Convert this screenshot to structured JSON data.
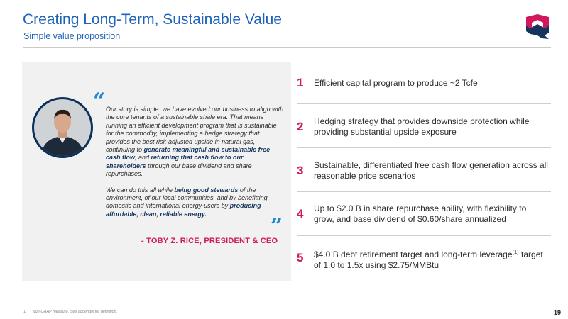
{
  "header": {
    "title": "Creating Long-Term, Sustainable Value",
    "subtitle": "Simple value proposition"
  },
  "logo": {
    "icon": "company-logo",
    "colors": [
      "#d0185a",
      "#16355e"
    ]
  },
  "quote": {
    "p1": [
      {
        "t": "Our story is simple: we have evolved our business to align with the core tenants of a sustainable shale era. That means running an efficient development program that is sustainable for the commodity, implementing a hedge strategy that provides the best risk-adjusted upside in natural gas, continuing to "
      },
      {
        "t": "generate meaningful and sustainable free cash flow",
        "b": true
      },
      {
        "t": ", and "
      },
      {
        "t": "returning that cash flow to our shareholders",
        "b": true
      },
      {
        "t": " through our base dividend and share repurchases."
      }
    ],
    "p2": [
      {
        "t": "We can do this all while "
      },
      {
        "t": "being good stewards",
        "b": true
      },
      {
        "t": " of the environment, of our local communities, and by benefitting domestic and international energy-users by "
      },
      {
        "t": "producing affordable, clean, reliable energy.",
        "b": true
      }
    ],
    "attribution": "- TOBY Z. RICE, PRESIDENT & CEO",
    "open_mark": "“",
    "close_mark": "”"
  },
  "points": [
    {
      "num": "1",
      "text": "Efficient capital program to produce ~2 Tcfe"
    },
    {
      "num": "2",
      "text": "Hedging strategy that provides downside protection while providing substantial upside exposure"
    },
    {
      "num": "3",
      "text": "Sustainable, differentiated free cash flow generation across all reasonable price scenarios"
    },
    {
      "num": "4",
      "text": "Up to $2.0 B in share repurchase ability, with flexibility to grow, and base dividend of $0.60/share annualized"
    },
    {
      "num": "5",
      "text_a": "$4.0 B debt retirement target and long-term leverage",
      "sup": "(1)",
      "text_b": "target of 1.0 to 1.5x using $2.75/MMBtu"
    }
  ],
  "footnote": {
    "num": "1.",
    "text": "Non-GAAP measure. See appendix for definition."
  },
  "page_number": "19",
  "colors": {
    "accent_blue": "#1f63b8",
    "accent_pink": "#d0185a",
    "navy": "#16355e"
  }
}
